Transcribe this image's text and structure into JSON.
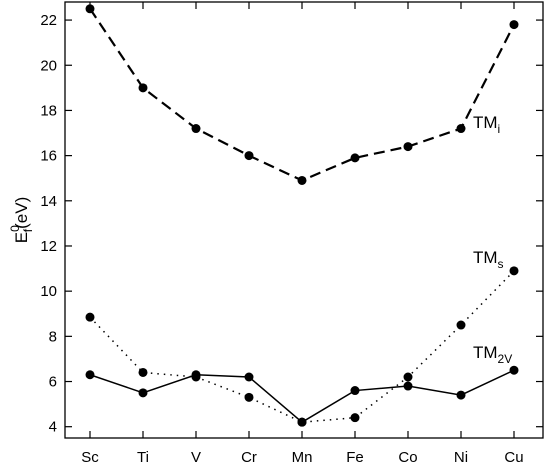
{
  "chart_data": {
    "type": "line",
    "categories": [
      "Sc",
      "Ti",
      "V",
      "Cr",
      "Mn",
      "Fe",
      "Co",
      "Ni",
      "Cu"
    ],
    "ylabel": {
      "main": "E",
      "sup": "0",
      "sub": "f",
      "unit": "(eV)"
    },
    "ylim": [
      3.5,
      22.8
    ],
    "yticks": [
      4,
      6,
      8,
      10,
      12,
      14,
      16,
      18,
      20,
      22
    ],
    "grid": false,
    "series": [
      {
        "name": "TM_i",
        "label_main": "TM",
        "label_sub": "i",
        "style": "dashed",
        "values": [
          22.5,
          19.0,
          17.2,
          16.0,
          14.9,
          15.9,
          16.4,
          17.2,
          21.8
        ]
      },
      {
        "name": "TM_s",
        "label_main": "TM",
        "label_sub": "s",
        "style": "dotted",
        "values": [
          8.85,
          6.4,
          6.2,
          5.3,
          4.2,
          4.4,
          6.2,
          8.5,
          10.9
        ]
      },
      {
        "name": "TM_2V",
        "label_main": "TM",
        "label_sub": "2V",
        "style": "solid",
        "values": [
          6.3,
          5.5,
          6.3,
          6.2,
          4.2,
          5.6,
          5.8,
          5.4,
          6.5
        ]
      }
    ]
  }
}
